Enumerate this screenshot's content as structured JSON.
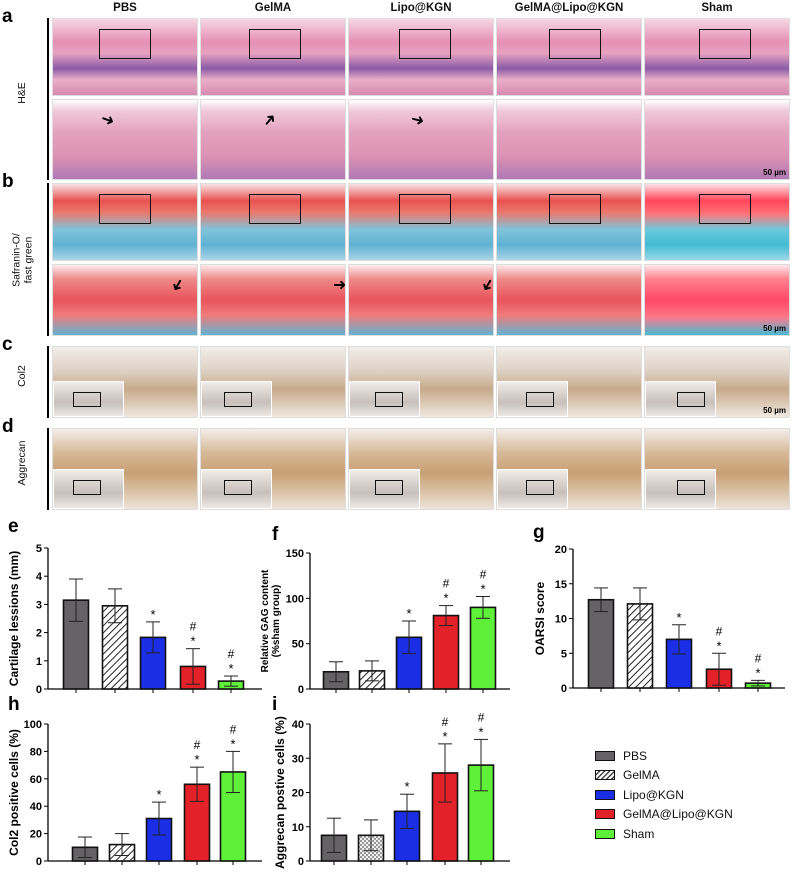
{
  "columns": [
    "PBS",
    "GelMA",
    "Lipo@KGN",
    "GelMA@Lipo@KGN",
    "Sham"
  ],
  "rows": [
    {
      "letter": "a",
      "label": "H&E"
    },
    {
      "letter": "b",
      "label": "Safranin-O/\nfast green"
    },
    {
      "letter": "c",
      "label": "Col2"
    },
    {
      "letter": "d",
      "label": "Aggrecan"
    }
  ],
  "scale_bar": "50 µm",
  "colors": {
    "PBS": "#646264",
    "GelMA": "#ffffff",
    "Lipo@KGN": "#1a2ee6",
    "GelMA@Lipo@KGN": "#e32129",
    "Sham": "#5ff03a"
  },
  "legend": [
    "PBS",
    "GelMA",
    "Lipo@KGN",
    "GelMA@Lipo@KGN",
    "Sham"
  ],
  "chart_data": [
    {
      "panel": "e",
      "type": "bar",
      "categories": [
        "PBS",
        "GelMA",
        "Lipo@KGN",
        "GelMA@Lipo@KGN",
        "Sham"
      ],
      "values": [
        3.15,
        2.95,
        1.83,
        0.8,
        0.28
      ],
      "errors": [
        0.75,
        0.6,
        0.55,
        0.63,
        0.18
      ],
      "significance": [
        "",
        "",
        "*",
        "#*",
        "#*"
      ],
      "ylabel": "Cartilage  lessions (mm)",
      "ylim": [
        0,
        5
      ],
      "yticks": [
        "0",
        "1",
        "2",
        "3",
        "4",
        "5"
      ],
      "gelma_pattern": "hatch"
    },
    {
      "panel": "f",
      "type": "bar",
      "categories": [
        "PBS",
        "GelMA",
        "Lipo@KGN",
        "GelMA@Lipo@KGN",
        "Sham"
      ],
      "values": [
        19,
        20,
        57,
        81,
        90
      ],
      "errors": [
        11,
        11,
        18,
        11,
        12
      ],
      "significance": [
        "",
        "",
        "*",
        "#*",
        "#*"
      ],
      "ylabel": "Relative GAG content\n(%sham group)",
      "ylim": [
        0,
        150
      ],
      "yticks": [
        "0",
        "50",
        "100",
        "150"
      ],
      "gelma_pattern": "hatch"
    },
    {
      "panel": "g",
      "type": "bar",
      "categories": [
        "PBS",
        "GelMA",
        "Lipo@KGN",
        "GelMA@Lipo@KGN",
        "Sham"
      ],
      "values": [
        12.7,
        12.1,
        7.0,
        2.7,
        0.7
      ],
      "errors": [
        1.7,
        2.3,
        2.1,
        2.3,
        0.4
      ],
      "significance": [
        "",
        "",
        "*",
        "#*",
        "#*"
      ],
      "ylabel": "OARSI score",
      "ylim": [
        0,
        20
      ],
      "yticks": [
        "0",
        "5",
        "10",
        "15",
        "20"
      ],
      "gelma_pattern": "hatch"
    },
    {
      "panel": "h",
      "type": "bar",
      "categories": [
        "PBS",
        "GelMA",
        "Lipo@KGN",
        "GelMA@Lipo@KGN",
        "Sham"
      ],
      "values": [
        10,
        12,
        31,
        56,
        65
      ],
      "errors": [
        7.5,
        8,
        12,
        12.5,
        15
      ],
      "significance": [
        "",
        "",
        "*",
        "#*",
        "#*"
      ],
      "ylabel": "Col2 positive cells (%)",
      "ylim": [
        0,
        100
      ],
      "yticks": [
        "0",
        "20",
        "40",
        "60",
        "80",
        "100"
      ],
      "gelma_pattern": "hatch"
    },
    {
      "panel": "i",
      "type": "bar",
      "categories": [
        "PBS",
        "GelMA",
        "Lipo@KGN",
        "GelMA@Lipo@KGN",
        "Sham"
      ],
      "values": [
        7.5,
        7.5,
        14.5,
        25.7,
        28
      ],
      "errors": [
        5,
        4.5,
        5,
        8.5,
        7.5
      ],
      "significance": [
        "",
        "",
        "*",
        "#*",
        "#*"
      ],
      "ylabel": "Aggrecan postive cells (%)",
      "ylim": [
        0,
        40
      ],
      "yticks": [
        "0",
        "10",
        "20",
        "30",
        "40"
      ],
      "gelma_pattern": "checker"
    }
  ]
}
